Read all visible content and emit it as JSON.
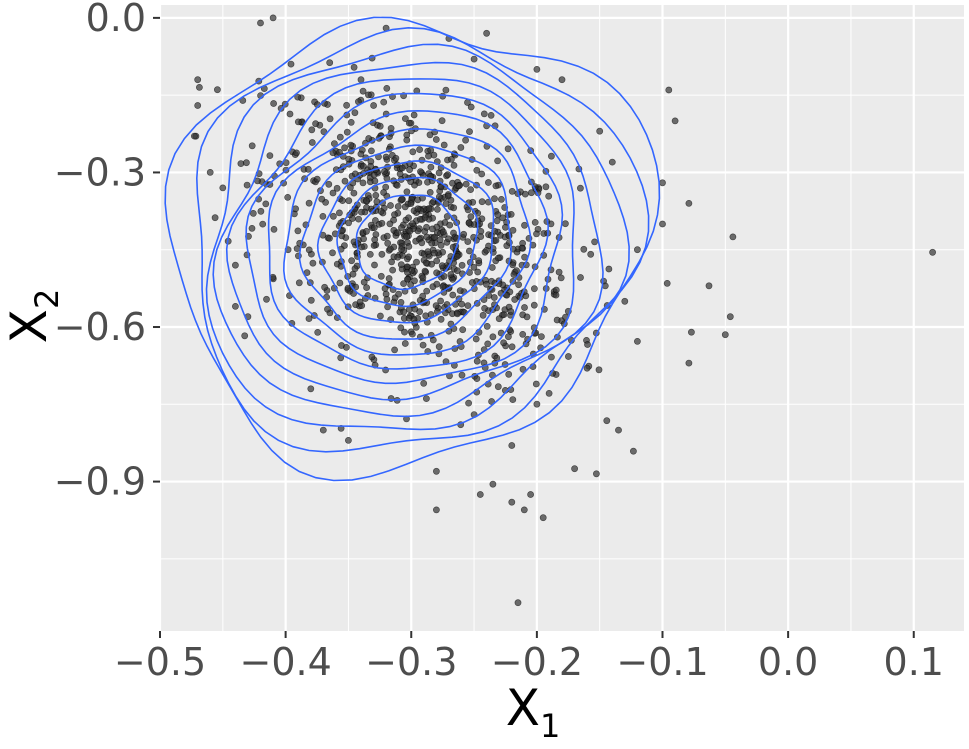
{
  "chart_data": {
    "type": "scatter",
    "title": "",
    "xlabel_main": "X",
    "xlabel_sub": "1",
    "ylabel_main": "X",
    "ylabel_sub": "2",
    "xlim": [
      -0.5,
      0.14
    ],
    "ylim": [
      -1.19,
      0.025
    ],
    "x_ticks": [
      -0.5,
      -0.4,
      -0.3,
      -0.2,
      -0.1,
      0.0,
      0.1
    ],
    "x_tick_labels": [
      "−0.5",
      "−0.4",
      "−0.3",
      "−0.2",
      "−0.1",
      "0.0",
      "0.1"
    ],
    "y_ticks": [
      0.0,
      -0.3,
      -0.6,
      -0.9
    ],
    "y_tick_labels": [
      "0.0",
      "−0.3",
      "−0.6",
      "−0.9"
    ],
    "grid": true,
    "panel_background": "#ebebeb",
    "grid_color": "#ffffff",
    "point_color": "#333333",
    "contour_color": "#3366ff",
    "points": {
      "center": [
        -0.292,
        -0.43
      ],
      "approx_count": 1000,
      "cloud": [
        [
          -0.41,
          0.0
        ],
        [
          -0.42,
          -0.01
        ],
        [
          -0.32,
          -0.02
        ],
        [
          -0.24,
          -0.03
        ],
        [
          -0.27,
          -0.04
        ],
        [
          -0.47,
          -0.12
        ],
        [
          -0.47,
          -0.17
        ],
        [
          -0.46,
          -0.3
        ],
        [
          -0.45,
          -0.33
        ],
        [
          -0.44,
          -0.48
        ],
        [
          -0.095,
          -0.14
        ],
        [
          -0.09,
          -0.2
        ],
        [
          -0.18,
          -0.12
        ],
        [
          -0.1,
          -0.32
        ],
        [
          -0.1,
          -0.4
        ],
        [
          -0.079,
          -0.36
        ],
        [
          -0.044,
          -0.425
        ],
        [
          -0.063,
          -0.52
        ],
        [
          -0.077,
          -0.61
        ],
        [
          -0.05,
          -0.615
        ],
        [
          -0.046,
          -0.58
        ],
        [
          -0.079,
          -0.67
        ],
        [
          0.115,
          -0.455
        ],
        [
          -0.135,
          -0.8
        ],
        [
          -0.17,
          -0.875
        ],
        [
          -0.195,
          -0.97
        ],
        [
          -0.205,
          -0.925
        ],
        [
          -0.21,
          -0.955
        ],
        [
          -0.22,
          -0.94
        ],
        [
          -0.235,
          -0.905
        ],
        [
          -0.245,
          -0.925
        ],
        [
          -0.28,
          -0.955
        ],
        [
          -0.28,
          -0.88
        ],
        [
          -0.215,
          -1.135
        ],
        [
          -0.35,
          -0.82
        ],
        [
          -0.37,
          -0.8
        ],
        [
          -0.38,
          -0.72
        ],
        [
          -0.44,
          -0.56
        ],
        [
          -0.43,
          -0.58
        ],
        [
          -0.33,
          -0.17
        ],
        [
          -0.34,
          -0.12
        ],
        [
          -0.25,
          -0.08
        ],
        [
          -0.2,
          -0.1
        ],
        [
          -0.15,
          -0.22
        ],
        [
          -0.14,
          -0.28
        ],
        [
          -0.12,
          -0.45
        ],
        [
          -0.13,
          -0.55
        ],
        [
          -0.16,
          -0.68
        ],
        [
          -0.22,
          -0.83
        ],
        [
          -0.25,
          -0.77
        ]
      ]
    },
    "contours": {
      "levels": 12,
      "note_levels_descending": true
    }
  }
}
